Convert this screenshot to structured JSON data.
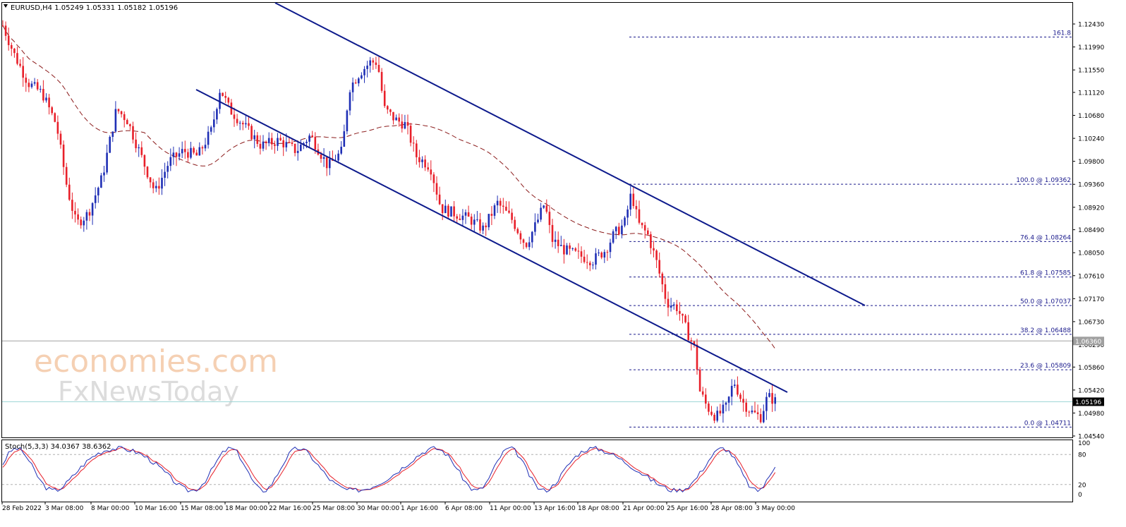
{
  "chart_data": {
    "type": "candlestick",
    "symbol_header": "EURUSD,H4  1.05249 1.05331 1.05182 1.05196",
    "last_price_label": "1.05196",
    "marker_price_label": "1.06360",
    "ylim": [
      1.0445,
      1.1265
    ],
    "price_ticks": [
      "1.12430",
      "1.11990",
      "1.11550",
      "1.11120",
      "1.10680",
      "1.10240",
      "1.09800",
      "1.09360",
      "1.08920",
      "1.08490",
      "1.08050",
      "1.07610",
      "1.07170",
      "1.06730",
      "1.06290",
      "1.05860",
      "1.05420",
      "1.04980",
      "1.04540"
    ],
    "x_labels": [
      "28 Feb 2022",
      "3 Mar 08:00",
      "8 Mar 00:00",
      "10 Mar 16:00",
      "15 Mar 08:00",
      "18 Mar 00:00",
      "22 Mar 16:00",
      "25 Mar 08:00",
      "30 Mar 00:00",
      "1 Apr 16:00",
      "6 Apr 08:00",
      "11 Apr 00:00",
      "13 Apr 16:00",
      "18 Apr 08:00",
      "21 Apr 00:00",
      "25 Apr 16:00",
      "28 Apr 08:00",
      "3 May 00:00"
    ],
    "fibonacci_levels": [
      {
        "label": "161.8",
        "value": 1.1218
      },
      {
        "label": "100.0 @ 1.09362",
        "value": 1.09362
      },
      {
        "label": "76.4 @ 1.08264",
        "value": 1.08264
      },
      {
        "label": "61.8 @ 1.07585",
        "value": 1.07585
      },
      {
        "label": "50.0 @ 1.07037",
        "value": 1.07037
      },
      {
        "label": "38.2 @ 1.06488",
        "value": 1.06488
      },
      {
        "label": "23.6 @ 1.05809",
        "value": 1.05809
      },
      {
        "label": "0.0 @ 1.04711",
        "value": 1.04711
      }
    ],
    "colors": {
      "up": "#1f2fb5",
      "down": "#e8202a",
      "channel": "#0d1a8c",
      "ma": "#8b1a1a",
      "fib": "#1a1a8c",
      "stoch_main": "#1f2fb5",
      "stoch_signal": "#e8202a"
    },
    "stochastic": {
      "header": "Stoch(5,3,3) 34.0367 38.6362",
      "ticks": [
        "100",
        "80",
        "20",
        "0"
      ],
      "levels": [
        80,
        20
      ]
    }
  },
  "watermark": {
    "line1": "economies.com",
    "line2": "FxNewsToday"
  }
}
